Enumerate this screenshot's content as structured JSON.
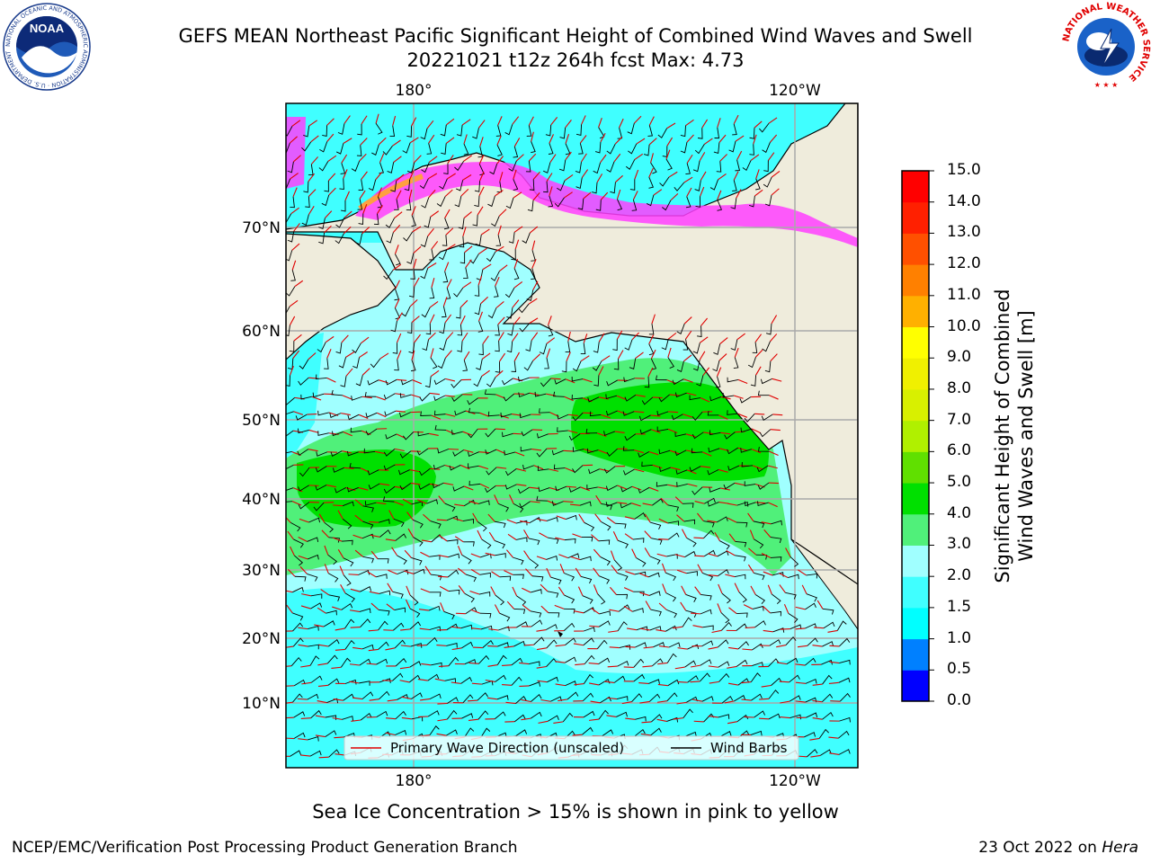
{
  "title": {
    "line1": "GEFS MEAN Northeast Pacific Significant Height of Combined Wind Waves and Swell",
    "line2": "20221021 t12z 264h fcst   Max: 4.73"
  },
  "map": {
    "lon_ticks_top": [
      "180°",
      "120°W"
    ],
    "lon_ticks_bottom": [
      "180°",
      "120°W"
    ],
    "lat_ticks": [
      "70°N",
      "60°N",
      "50°N",
      "40°N",
      "30°N",
      "20°N",
      "10°N"
    ],
    "legend": {
      "wave_label": "Primary Wave Direction (unscaled)",
      "wind_label": "Wind Barbs"
    },
    "colors": {
      "land": "#efecdc",
      "wave_arrow": "#e00000",
      "barb": "#000000"
    }
  },
  "colorbar": {
    "title_line1": "Significant Height of Combined",
    "title_line2": "Wind Waves and Swell [m]",
    "ticks": [
      "0.0",
      "0.5",
      "1.0",
      "1.5",
      "2.0",
      "3.0",
      "4.0",
      "5.0",
      "6.0",
      "7.0",
      "8.0",
      "9.0",
      "10.0",
      "11.0",
      "12.0",
      "13.0",
      "14.0",
      "15.0"
    ],
    "colors": [
      "#0000ff",
      "#0080ff",
      "#00ffff",
      "#40ffff",
      "#a0ffff",
      "#50f07a",
      "#00e000",
      "#60e000",
      "#b0f000",
      "#d8f000",
      "#f0f000",
      "#ffff00",
      "#ffb000",
      "#ff8000",
      "#ff5000",
      "#ff2000",
      "#ff0000"
    ]
  },
  "logos": {
    "noaa_text": "NOAA",
    "noaa_ring": "NATIONAL OCEANIC AND ATMOSPHERIC ADMINISTRATION · U.S. DEPARTMENT OF COMMERCE",
    "nws_ring": "NATIONAL WEATHER SERVICE"
  },
  "footnote": "Sea Ice Concentration > 15% is shown in pink to yellow",
  "credit": "NCEP/EMC/Verification Post Processing Product Generation Branch",
  "date": {
    "text": "23 Oct 2022 on ",
    "system": "Hera"
  }
}
